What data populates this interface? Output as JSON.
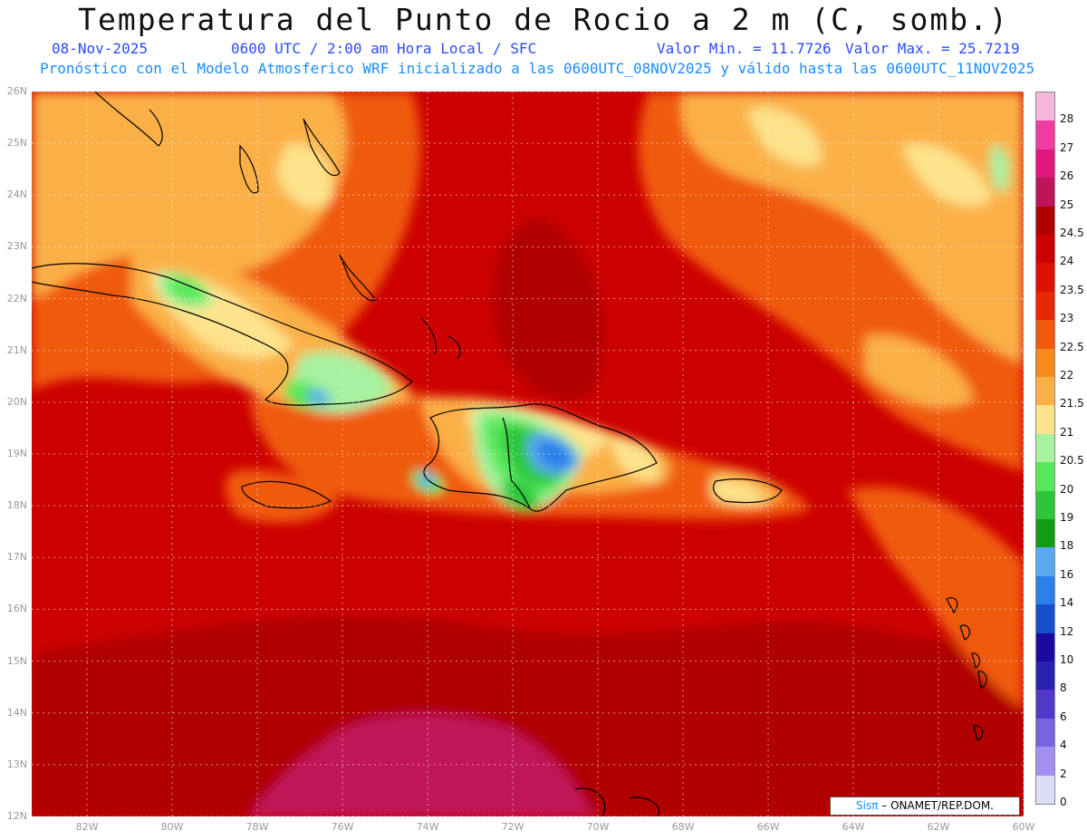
{
  "header": {
    "title": "Temperatura del Punto de Rocio a 2 m (C, somb.)",
    "date": "08-Nov-2025",
    "time": "0600 UTC / 2:00 am Hora Local / SFC",
    "min": "Valor Min. = 11.7726",
    "max": "Valor Max. = 25.7219",
    "forecast": "Pronóstico con el Modelo Atmosferico WRF inicializado a las 0600UTC_08NOV2025 y válido hasta las  0600UTC_11NOV2025"
  },
  "axes": {
    "lat_labels": [
      "26N",
      "25N",
      "24N",
      "23N",
      "22N",
      "21N",
      "20N",
      "19N",
      "18N",
      "17N",
      "16N",
      "15N",
      "14N",
      "13N",
      "12N"
    ],
    "lon_labels": [
      "82W",
      "80W",
      "78W",
      "76W",
      "74W",
      "72W",
      "70W",
      "68W",
      "66W",
      "64W",
      "62W",
      "60W"
    ]
  },
  "legend": {
    "labels": [
      "28",
      "27",
      "26",
      "25",
      "24.5",
      "24",
      "23.5",
      "23",
      "22.5",
      "22",
      "21.5",
      "21",
      "20.5",
      "20",
      "19",
      "18",
      "16",
      "14",
      "12",
      "10",
      "8",
      "6",
      "4",
      "2",
      "0"
    ],
    "colors": [
      "#f5b8dc",
      "#f03ca0",
      "#e0187e",
      "#c01458",
      "#b00000",
      "#cc0000",
      "#dd1100",
      "#e82800",
      "#f05a0a",
      "#f78a18",
      "#fbb046",
      "#fde38c",
      "#a6f2a0",
      "#56e85a",
      "#2cc63a",
      "#119c16",
      "#5aa8f0",
      "#2b7fe8",
      "#1450cc",
      "#1a0aa0",
      "#2a20b0",
      "#5038c8",
      "#7864e0",
      "#a490f0",
      "#dcdcf8"
    ]
  },
  "map": {
    "grid_lines": "dotted",
    "colors": {
      "base": "#cc0000",
      "dark": "#b00000",
      "red2": "#dd1100",
      "red3": "#e82800",
      "orange": "#f05a0a",
      "orange2": "#f78a18",
      "peach": "#fbb046",
      "yellow": "#fde38c",
      "lgreen": "#a6f2a0",
      "green": "#56e85a",
      "green2": "#2cc63a",
      "blue": "#5aa8f0",
      "blue2": "#2b7fe8",
      "magenta": "#c01458"
    }
  },
  "credit": {
    "brand": "Sisπ",
    "org": "ONAMET/REP.DOM."
  }
}
